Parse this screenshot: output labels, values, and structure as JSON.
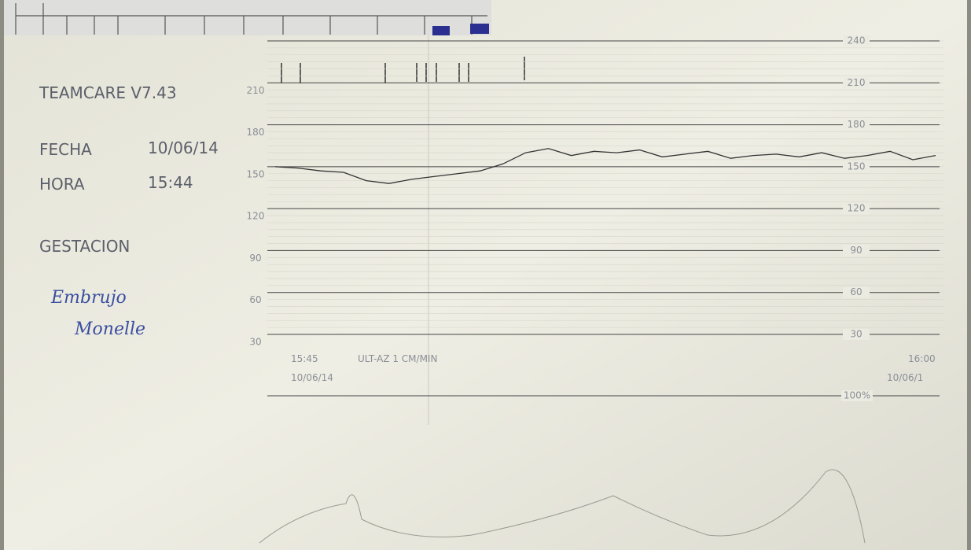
{
  "header": {
    "device": "TEAMCARE V7.43"
  },
  "fields": [
    {
      "label": "FECHA",
      "value": "10/06/14"
    },
    {
      "label": "HORA",
      "value": "15:44"
    }
  ],
  "gestation": {
    "label": "GESTACION",
    "note_line1": "Embrujo",
    "note_line2": "Monelle"
  },
  "scale": {
    "right": [
      240,
      210,
      180,
      150,
      120,
      90,
      60,
      30
    ],
    "left": [
      210,
      180,
      150,
      120,
      90,
      60,
      30
    ],
    "toco": "100%"
  },
  "footer": {
    "start_time": "15:45",
    "mode": "ULT-AZ  1 CM/MIN",
    "start_date": "10/06/14",
    "end_time": "16:00",
    "end_date": "10/06/1"
  },
  "trace": {
    "fhr": [
      150,
      149,
      147,
      146,
      140,
      138,
      141,
      143,
      145,
      147,
      152,
      160,
      163,
      158,
      161,
      160,
      162,
      157,
      159,
      161,
      156,
      158,
      159,
      157,
      160,
      156,
      158,
      161,
      155,
      158
    ]
  }
}
